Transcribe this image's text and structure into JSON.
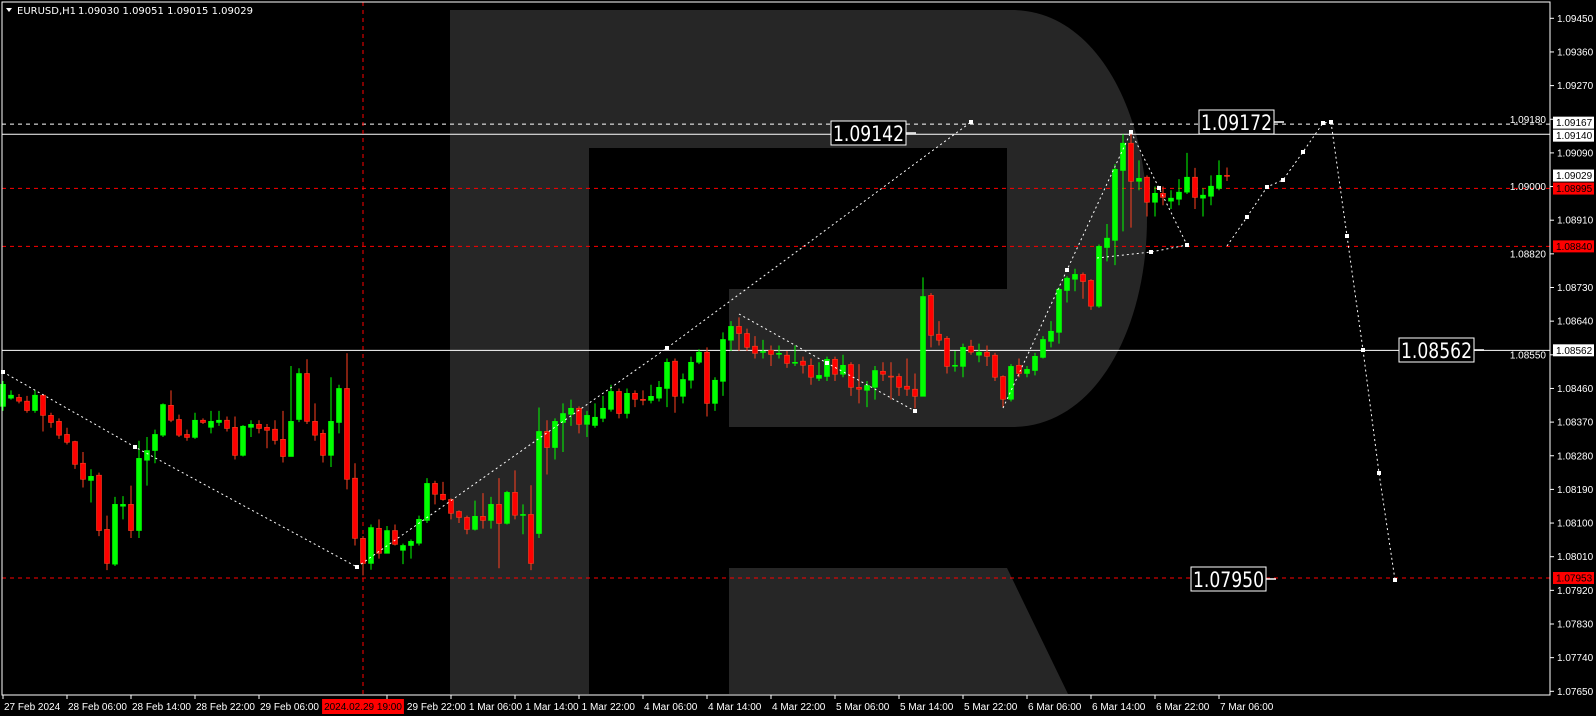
{
  "header": {
    "symbol": "EURUSD,H1",
    "ohlc": "1.09030 1.09051 1.09015 1.09029",
    "menu_icon": "triangle-down-icon"
  },
  "colors": {
    "background": "#000000",
    "bull": "#00ff00",
    "bear": "#ff0000",
    "bear_wick": "#ff4020",
    "axis": "#ffffff",
    "level_red": "#ff0000",
    "level_white": "#ffffff",
    "watermark": "#262626"
  },
  "chart_data": {
    "type": "candlestick",
    "symbol": "EURUSD",
    "timeframe": "H1",
    "ylim": [
      1.0763,
      1.0947
    ],
    "grid": false,
    "y_ticks": [
      "1.09450",
      "1.09360",
      "1.09270",
      "1.09180",
      "1.09090",
      "1.09000",
      "1.08910",
      "1.08820",
      "1.08730",
      "1.08640",
      "1.08550",
      "1.08460",
      "1.08370",
      "1.08280",
      "1.08190",
      "1.08100",
      "1.08010",
      "1.07920",
      "1.07830",
      "1.07740",
      "1.07650"
    ],
    "x_ticks": [
      {
        "label": "27 Feb 2024",
        "bar": 0
      },
      {
        "label": "28 Feb 06:00",
        "bar": 8
      },
      {
        "label": "28 Feb 14:00",
        "bar": 16
      },
      {
        "label": "28 Feb 22:00",
        "bar": 24
      },
      {
        "label": "29 Feb 06:00",
        "bar": 32
      },
      {
        "label": "29 Feb 22:00",
        "bar": 48
      },
      {
        "label": "1 Mar 06:00",
        "bar": 56
      },
      {
        "label": "1 Mar 14:00",
        "bar": 64
      },
      {
        "label": "1 Mar 22:00",
        "bar": 72
      },
      {
        "label": "4 Mar 06:00",
        "bar": 80
      },
      {
        "label": "4 Mar 14:00",
        "bar": 88
      },
      {
        "label": "4 Mar 22:00",
        "bar": 96
      },
      {
        "label": "5 Mar 06:00",
        "bar": 104
      },
      {
        "label": "5 Mar 14:00",
        "bar": 112
      },
      {
        "label": "5 Mar 22:00",
        "bar": 120
      },
      {
        "label": "6 Mar 06:00",
        "bar": 128
      },
      {
        "label": "6 Mar 14:00",
        "bar": 136
      },
      {
        "label": "6 Mar 22:00",
        "bar": 144
      },
      {
        "label": "7 Mar 06:00",
        "bar": 152
      }
    ],
    "crosshair": {
      "label": "2024.02.29 19:00",
      "bar": 45
    },
    "candles_ohlc": [
      [
        1.08412,
        1.0848,
        1.084,
        1.08471
      ],
      [
        1.08434,
        1.08455,
        1.0843,
        1.08442
      ],
      [
        1.08436,
        1.08445,
        1.0842,
        1.08426
      ],
      [
        1.08426,
        1.0844,
        1.08395,
        1.08401
      ],
      [
        1.08401,
        1.08455,
        1.08395,
        1.08442
      ],
      [
        1.08442,
        1.08445,
        1.08345,
        1.08388
      ],
      [
        1.08388,
        1.08395,
        1.08355,
        1.08369
      ],
      [
        1.08372,
        1.0838,
        1.08325,
        1.08335
      ],
      [
        1.08337,
        1.08355,
        1.0831,
        1.08316
      ],
      [
        1.08318,
        1.0832,
        1.08245,
        1.08257
      ],
      [
        1.0826,
        1.0829,
        1.08195,
        1.08217
      ],
      [
        1.08214,
        1.08244,
        1.08155,
        1.08225
      ],
      [
        1.08228,
        1.08235,
        1.08065,
        1.0808
      ],
      [
        1.08083,
        1.0812,
        1.07974,
        1.07992
      ],
      [
        1.0799,
        1.0817,
        1.07985,
        1.0815
      ],
      [
        1.08145,
        1.08172,
        1.0811,
        1.0815
      ],
      [
        1.0815,
        1.082,
        1.0806,
        1.0808
      ],
      [
        1.0808,
        1.0832,
        1.0806,
        1.08273
      ],
      [
        1.08268,
        1.0833,
        1.082,
        1.08294
      ],
      [
        1.08294,
        1.0835,
        1.0826,
        1.08337
      ],
      [
        1.08335,
        1.0842,
        1.0833,
        1.08417
      ],
      [
        1.08415,
        1.08455,
        1.0837,
        1.08375
      ],
      [
        1.08377,
        1.0839,
        1.0833,
        1.08335
      ],
      [
        1.08337,
        1.0835,
        1.0832,
        1.08329
      ],
      [
        1.08329,
        1.08395,
        1.08325,
        1.08375
      ],
      [
        1.08375,
        1.0838,
        1.08365,
        1.08369
      ],
      [
        1.08356,
        1.084,
        1.0834,
        1.08372
      ],
      [
        1.08369,
        1.084,
        1.0836,
        1.08375
      ],
      [
        1.08375,
        1.08385,
        1.08345,
        1.08353
      ],
      [
        1.08356,
        1.08385,
        1.0827,
        1.08281
      ],
      [
        1.08281,
        1.08362,
        1.08278,
        1.08359
      ],
      [
        1.08356,
        1.08375,
        1.0833,
        1.08364
      ],
      [
        1.08364,
        1.08375,
        1.0834,
        1.08353
      ],
      [
        1.08356,
        1.08365,
        1.083,
        1.08348
      ],
      [
        1.08351,
        1.08375,
        1.0831,
        1.08321
      ],
      [
        1.08324,
        1.084,
        1.08262,
        1.08278
      ],
      [
        1.08278,
        1.0852,
        1.08278,
        1.08372
      ],
      [
        1.08377,
        1.08514,
        1.0837,
        1.085
      ],
      [
        1.085,
        1.08538,
        1.08365,
        1.08372
      ],
      [
        1.08372,
        1.0842,
        1.0832,
        1.08335
      ],
      [
        1.0834,
        1.0835,
        1.08262,
        1.08281
      ],
      [
        1.08281,
        1.0849,
        1.0825,
        1.08372
      ],
      [
        1.08369,
        1.0847,
        1.0834,
        1.0846
      ],
      [
        1.0846,
        1.08554,
        1.0819,
        1.08217
      ],
      [
        1.0822,
        1.0826,
        1.0804,
        1.08059
      ],
      [
        1.08059,
        1.08065,
        1.0796,
        1.07992
      ],
      [
        1.07992,
        1.08096,
        1.07975,
        1.08088
      ],
      [
        1.08086,
        1.0811,
        1.08005,
        1.08019
      ],
      [
        1.08019,
        1.08092,
        1.08019,
        1.0808
      ],
      [
        1.0808,
        1.08096,
        1.0804,
        1.08043
      ],
      [
        1.08027,
        1.08045,
        1.0799,
        1.0804
      ],
      [
        1.0804,
        1.08056,
        1.08005,
        1.08051
      ],
      [
        1.08046,
        1.0812,
        1.0804,
        1.0811
      ],
      [
        1.08107,
        1.0822,
        1.081,
        1.08206
      ],
      [
        1.08206,
        1.08213,
        1.0815,
        1.08177
      ],
      [
        1.08177,
        1.0821,
        1.0816,
        1.08163
      ],
      [
        1.08163,
        1.08166,
        1.0811,
        1.08126
      ],
      [
        1.08131,
        1.08134,
        1.081,
        1.08115
      ],
      [
        1.08115,
        1.0812,
        1.0807,
        1.08083
      ],
      [
        1.08083,
        1.0816,
        1.0808,
        1.08118
      ],
      [
        1.08118,
        1.0818,
        1.08085,
        1.08107
      ],
      [
        1.08107,
        1.0817,
        1.08085,
        1.0815
      ],
      [
        1.0815,
        1.0822,
        1.07979,
        1.08099
      ],
      [
        1.08099,
        1.08186,
        1.08096,
        1.08182
      ],
      [
        1.08182,
        1.08241,
        1.0811,
        1.08121
      ],
      [
        1.08123,
        1.0815,
        1.0807,
        1.08123
      ],
      [
        1.08123,
        1.08201,
        1.07974,
        1.07992
      ],
      [
        1.08072,
        1.08409,
        1.0806,
        1.08345
      ],
      [
        1.08345,
        1.08375,
        1.0823,
        1.08302
      ],
      [
        1.08302,
        1.0838,
        1.0827,
        1.08372
      ],
      [
        1.08369,
        1.0842,
        1.0829,
        1.08393
      ],
      [
        1.08391,
        1.0843,
        1.0836,
        1.08407
      ],
      [
        1.08407,
        1.08412,
        1.0834,
        1.08364
      ],
      [
        1.08364,
        1.084,
        1.0833,
        1.08388
      ],
      [
        1.08361,
        1.0842,
        1.08355,
        1.08383
      ],
      [
        1.0838,
        1.0844,
        1.0837,
        1.08407
      ],
      [
        1.08404,
        1.0847,
        1.08398,
        1.08452
      ],
      [
        1.08452,
        1.0846,
        1.0838,
        1.08393
      ],
      [
        1.08393,
        1.0846,
        1.0838,
        1.08447
      ],
      [
        1.08447,
        1.08455,
        1.0841,
        1.08431
      ],
      [
        1.08431,
        1.08455,
        1.08415,
        1.08428
      ],
      [
        1.08428,
        1.0847,
        1.0842,
        1.08439
      ],
      [
        1.08434,
        1.0848,
        1.08425,
        1.08463
      ],
      [
        1.0846,
        1.0854,
        1.0841,
        1.0853
      ],
      [
        1.08533,
        1.0854,
        1.08395,
        1.08439
      ],
      [
        1.08439,
        1.085,
        1.0842,
        1.08484
      ],
      [
        1.08482,
        1.08545,
        1.0846,
        1.0853
      ],
      [
        1.0853,
        1.08565,
        1.08525,
        1.08557
      ],
      [
        1.08557,
        1.0857,
        1.08385,
        1.0842
      ],
      [
        1.0842,
        1.0849,
        1.084,
        1.08482
      ],
      [
        1.08479,
        1.0861,
        1.0844,
        1.08591
      ],
      [
        1.08589,
        1.0864,
        1.0856,
        1.08626
      ],
      [
        1.08626,
        1.0865,
        1.0856,
        1.08607
      ],
      [
        1.08607,
        1.0862,
        1.0856,
        1.0857
      ],
      [
        1.08573,
        1.086,
        1.0854,
        1.08554
      ],
      [
        1.08557,
        1.0859,
        1.0854,
        1.08559
      ],
      [
        1.08562,
        1.08575,
        1.0852,
        1.08551
      ],
      [
        1.08552,
        1.08575,
        1.0854,
        1.08554
      ],
      [
        1.08549,
        1.0856,
        1.08515,
        1.08527
      ],
      [
        1.08529,
        1.08575,
        1.0852,
        1.0853
      ],
      [
        1.08533,
        1.08545,
        1.085,
        1.08522
      ],
      [
        1.08522,
        1.0854,
        1.0847,
        1.0849
      ],
      [
        1.08487,
        1.0853,
        1.0848,
        1.08495
      ],
      [
        1.08492,
        1.08545,
        1.0848,
        1.08538
      ],
      [
        1.08538,
        1.08545,
        1.0848,
        1.08498
      ],
      [
        1.08498,
        1.0855,
        1.0849,
        1.08522
      ],
      [
        1.08524,
        1.0853,
        1.0844,
        1.08463
      ],
      [
        1.08463,
        1.08525,
        1.0842,
        1.08458
      ],
      [
        1.08455,
        1.0848,
        1.0841,
        1.08468
      ],
      [
        1.08463,
        1.0852,
        1.0843,
        1.08508
      ],
      [
        1.08506,
        1.0853,
        1.0848,
        1.08498
      ],
      [
        1.08493,
        1.0853,
        1.0843,
        1.08492
      ],
      [
        1.08492,
        1.085,
        1.0844,
        1.08463
      ],
      [
        1.08466,
        1.0854,
        1.0844,
        1.08458
      ],
      [
        1.08458,
        1.085,
        1.08407,
        1.08439
      ],
      [
        1.08439,
        1.08757,
        1.08439,
        1.08706
      ],
      [
        1.08709,
        1.08715,
        1.0857,
        1.08602
      ],
      [
        1.08605,
        1.0864,
        1.08575,
        1.08589
      ],
      [
        1.08594,
        1.086,
        1.085,
        1.08519
      ],
      [
        1.08521,
        1.0856,
        1.08505,
        1.08522
      ],
      [
        1.08519,
        1.0858,
        1.0849,
        1.0857
      ],
      [
        1.08573,
        1.0859,
        1.0855,
        1.08557
      ],
      [
        1.08549,
        1.0858,
        1.0853,
        1.08557
      ],
      [
        1.08557,
        1.08575,
        1.0852,
        1.08546
      ],
      [
        1.08549,
        1.08555,
        1.0848,
        1.0849
      ],
      [
        1.08492,
        1.08495,
        1.0841,
        1.08431
      ],
      [
        1.08431,
        1.08525,
        1.08425,
        1.08519
      ],
      [
        1.08522,
        1.0854,
        1.0849,
        1.085
      ],
      [
        1.085,
        1.0852,
        1.0849,
        1.08511
      ],
      [
        1.08508,
        1.08555,
        1.08495,
        1.08546
      ],
      [
        1.08543,
        1.086,
        1.0854,
        1.08591
      ],
      [
        1.08586,
        1.0864,
        1.0857,
        1.08613
      ],
      [
        1.0861,
        1.0873,
        1.0858,
        1.08725
      ],
      [
        1.08722,
        1.0876,
        1.0869,
        1.08755
      ],
      [
        1.08752,
        1.0878,
        1.0872,
        1.08765
      ],
      [
        1.08765,
        1.0877,
        1.087,
        1.08746
      ],
      [
        1.08749,
        1.08752,
        1.0867,
        1.0868
      ],
      [
        1.0868,
        1.08845,
        1.08676,
        1.0884
      ],
      [
        1.08837,
        1.089,
        1.088,
        1.08862
      ],
      [
        1.08856,
        1.0906,
        1.0879,
        1.09046
      ],
      [
        1.09043,
        1.0914,
        1.0888,
        1.09116
      ],
      [
        1.09116,
        1.09148,
        1.0889,
        1.09014
      ],
      [
        1.09014,
        1.0907,
        1.0899,
        1.09022
      ],
      [
        1.09025,
        1.0903,
        1.0892,
        1.08958
      ],
      [
        1.08958,
        1.09,
        1.0892,
        1.08982
      ],
      [
        1.08982,
        1.09,
        1.0895,
        1.08971
      ],
      [
        1.08961,
        1.0899,
        1.0894,
        1.08969
      ],
      [
        1.08966,
        1.0902,
        1.0895,
        1.08985
      ],
      [
        1.08985,
        1.0909,
        1.0898,
        1.09025
      ],
      [
        1.09025,
        1.0905,
        1.0894,
        1.08971
      ],
      [
        1.08969,
        1.08995,
        1.0892,
        1.08977
      ],
      [
        1.08974,
        1.0903,
        1.0895,
        1.09001
      ],
      [
        1.08995,
        1.0907,
        1.0899,
        1.0903
      ],
      [
        1.0903,
        1.09051,
        1.09015,
        1.09029
      ]
    ],
    "levels": [
      {
        "price": 1.09167,
        "style": "dashed",
        "color": "#ffffff"
      },
      {
        "price": 1.0914,
        "style": "solid",
        "color": "#ffffff"
      },
      {
        "price": 1.08995,
        "style": "dashed",
        "color": "#ff0000"
      },
      {
        "price": 1.0884,
        "style": "dashed",
        "color": "#ff0000"
      },
      {
        "price": 1.08562,
        "style": "solid",
        "color": "#ffffff"
      },
      {
        "price": 1.07953,
        "style": "dashed",
        "color": "#ff0000"
      }
    ],
    "axis_markers": [
      {
        "text": "1.09167",
        "price": 1.09167,
        "bg": "#ffffff",
        "fg": "#000000"
      },
      {
        "text": "1.09140",
        "price": 1.0914,
        "bg": "#ffffff",
        "fg": "#000000"
      },
      {
        "text": "1.09029",
        "price": 1.09029,
        "bg": "#ffffff",
        "fg": "#000000"
      },
      {
        "text": "1.08995",
        "price": 1.08995,
        "bg": "#ff0000",
        "fg": "#000000"
      },
      {
        "text": "1.08840",
        "price": 1.0884,
        "bg": "#ff0000",
        "fg": "#000000"
      },
      {
        "text": "1.08562",
        "price": 1.08562,
        "bg": "#ffffff",
        "fg": "#000000"
      },
      {
        "text": "1.07953",
        "price": 1.07953,
        "bg": "#ff0000",
        "fg": "#000000"
      }
    ],
    "annotations": [
      "1.09142",
      "1.09172",
      "1.08562",
      "1.07950"
    ]
  }
}
